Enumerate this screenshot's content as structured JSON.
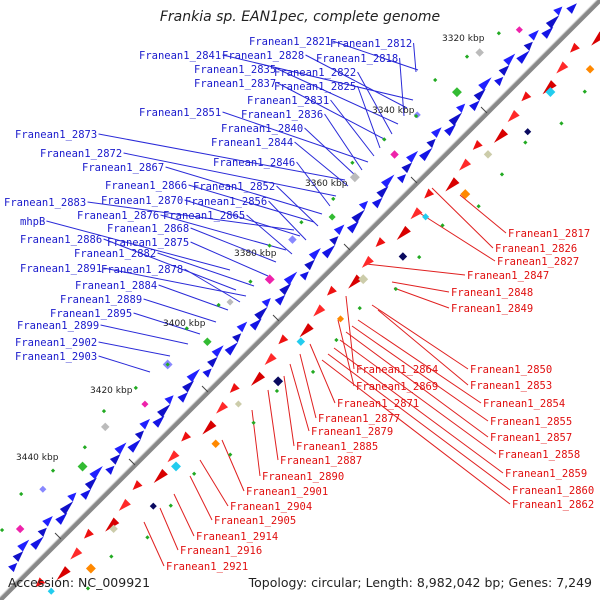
{
  "title": "Frankia sp. EAN1pec, complete genome",
  "footer": {
    "accession": "Accession: NC_009921",
    "summary": "Topology: circular; Length: 8,982,042 bp; Genes: 7,249"
  },
  "colors": {
    "forward": "#1414e6",
    "reverse": "#ee1111",
    "backbone": "#888888"
  },
  "kbp_labels": [
    "3320 kbp",
    "3340 kbp",
    "3360 kbp",
    "3380 kbp",
    "3400 kbp",
    "3420 kbp",
    "3440 kbp"
  ],
  "forward_labels": [
    "Franean1_2821",
    "Franean1_2812",
    "Franean1_2841",
    "Franean1_2828",
    "Franean1_2818",
    "Franean1_2835",
    "Franean1_2822",
    "Franean1_2837",
    "Franean1_2825",
    "Franean1_2831",
    "Franean1_2851",
    "Franean1_2836",
    "Franean1_2840",
    "Franean1_2873",
    "Franean1_2844",
    "Franean1_2872",
    "Franean1_2846",
    "Franean1_2867",
    "Franean1_2866",
    "Franean1_2852",
    "Franean1_2883",
    "Franean1_2870",
    "Franean1_2856",
    "Franean1_2876",
    "Franean1_2865",
    "mhpB",
    "Franean1_2868",
    "Franean1_2886",
    "Franean1_2875",
    "Franean1_2882",
    "Franean1_2891",
    "Franean1_2878",
    "Franean1_2884",
    "Franean1_2889",
    "Franean1_2895",
    "Franean1_2899",
    "Franean1_2902",
    "Franean1_2903"
  ],
  "reverse_labels": [
    "Franean1_2817",
    "Franean1_2826",
    "Franean1_2827",
    "Franean1_2847",
    "Franean1_2848",
    "Franean1_2849",
    "Franean1_2850",
    "Franean1_2864",
    "Franean1_2853",
    "Franean1_2869",
    "Franean1_2854",
    "Franean1_2871",
    "Franean1_2855",
    "Franean1_2877",
    "Franean1_2857",
    "Franean1_2879",
    "Franean1_2858",
    "Franean1_2885",
    "Franean1_2859",
    "Franean1_2887",
    "Franean1_2860",
    "Franean1_2890",
    "Franean1_2862",
    "Franean1_2901",
    "Franean1_2904",
    "Franean1_2905",
    "Franean1_2914",
    "Franean1_2916",
    "Franean1_2921"
  ]
}
